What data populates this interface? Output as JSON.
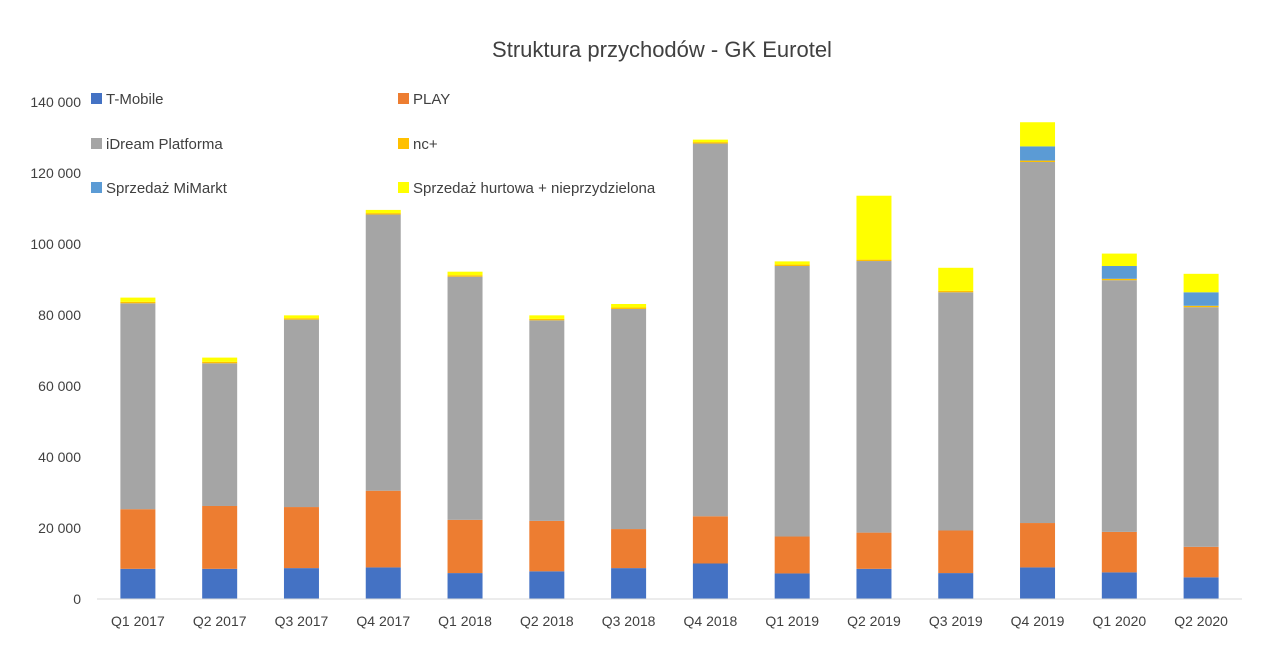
{
  "chart_data": {
    "type": "bar",
    "stacked": true,
    "title": "Struktura przychodów - GK Eurotel",
    "xlabel": "",
    "ylabel": "",
    "ylim": [
      0,
      140000
    ],
    "yticks": [
      0,
      20000,
      40000,
      60000,
      80000,
      100000,
      120000,
      140000
    ],
    "ytick_labels": [
      "0",
      "20 000",
      "40 000",
      "60 000",
      "80 000",
      "100 000",
      "120 000",
      "140 000"
    ],
    "grid": false,
    "legend_position": "top-left, inside plot, two columns",
    "categories": [
      "Q1 2017",
      "Q2 2017",
      "Q3 2017",
      "Q4 2017",
      "Q1 2018",
      "Q2 2018",
      "Q3 2018",
      "Q4 2018",
      "Q1 2019",
      "Q2 2019",
      "Q3 2019",
      "Q4 2019",
      "Q1 2020",
      "Q2 2020"
    ],
    "series": [
      {
        "name": "T-Mobile",
        "color": "#4472C4",
        "values": [
          8500,
          8500,
          8700,
          8900,
          7300,
          7800,
          8700,
          10000,
          7200,
          8500,
          7300,
          8900,
          7500,
          6100
        ]
      },
      {
        "name": "PLAY",
        "color": "#ED7D31",
        "values": [
          16800,
          17700,
          17200,
          21600,
          15000,
          14200,
          11000,
          13300,
          10400,
          10200,
          12000,
          12500,
          11400,
          8600
        ]
      },
      {
        "name": "iDream Platforma",
        "color": "#A5A5A5",
        "values": [
          58000,
          40200,
          52800,
          77800,
          68500,
          56500,
          62000,
          105000,
          76200,
          76500,
          67100,
          101700,
          70900,
          67500
        ]
      },
      {
        "name": "nc+",
        "color": "#FFC000",
        "values": [
          400,
          400,
          400,
          400,
          400,
          400,
          400,
          400,
          400,
          400,
          400,
          400,
          400,
          400
        ]
      },
      {
        "name": "Sprzedaż MiMarkt",
        "color": "#5B9BD5",
        "values": [
          0,
          0,
          0,
          0,
          0,
          0,
          0,
          0,
          0,
          0,
          0,
          4000,
          3600,
          3800
        ]
      },
      {
        "name": "Sprzedaż hurtowa + nieprzydzielona",
        "color": "#FFFF00",
        "values": [
          1200,
          1200,
          800,
          900,
          1000,
          1000,
          1000,
          700,
          900,
          18000,
          6500,
          6800,
          3500,
          5200
        ]
      }
    ]
  }
}
